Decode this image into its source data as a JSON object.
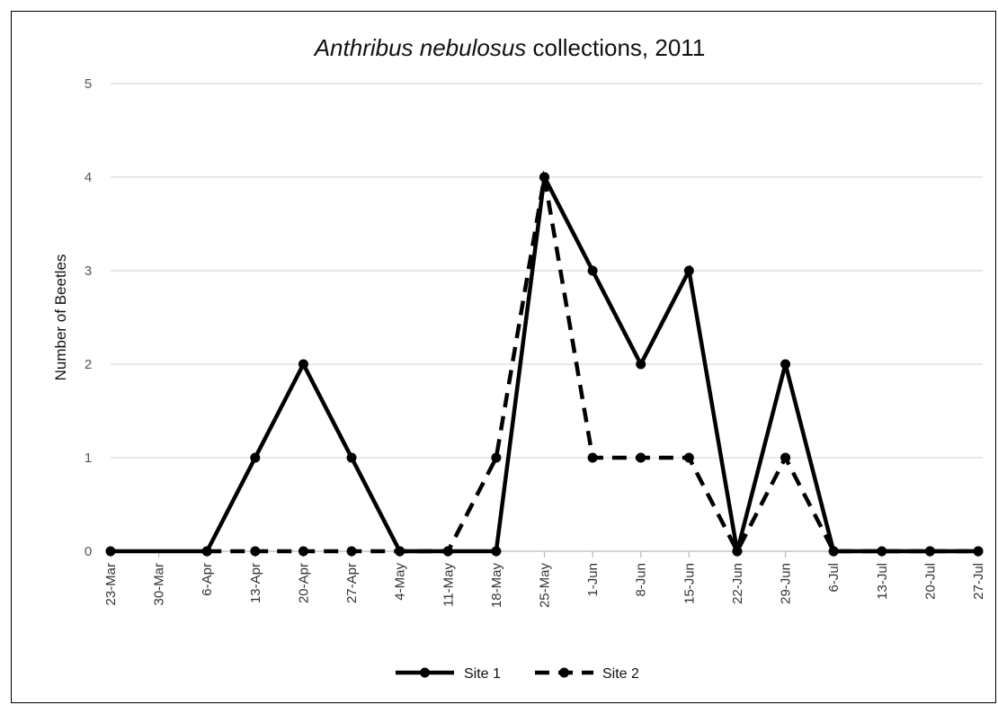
{
  "chart_data": {
    "type": "line",
    "title_italic": "Anthribus nebulosus",
    "title_rest": " collections, 2011",
    "xlabel": "",
    "ylabel": "Number of Beetles",
    "ylim": [
      0,
      5
    ],
    "yticks": [
      "0",
      "1",
      "2",
      "3",
      "4",
      "5"
    ],
    "categories": [
      "23-Mar",
      "30-Mar",
      "6-Apr",
      "13-Apr",
      "20-Apr",
      "27-Apr",
      "4-May",
      "11-May",
      "18-May",
      "25-May",
      "1-Jun",
      "8-Jun",
      "15-Jun",
      "22-Jun",
      "29-Jun",
      "6-Jul",
      "13-Jul",
      "20-Jul",
      "27-Jul"
    ],
    "grid": true,
    "legend_position": "bottom",
    "series": [
      {
        "name": "Site 1",
        "style": "solid",
        "color": "#000000",
        "values": [
          0,
          null,
          0,
          1,
          2,
          1,
          0,
          0,
          0,
          4,
          3,
          2,
          3,
          0,
          2,
          0,
          0,
          0,
          0
        ]
      },
      {
        "name": "Site 2",
        "style": "dashed",
        "color": "#000000",
        "values": [
          null,
          null,
          0,
          0,
          0,
          0,
          0,
          0,
          1,
          4,
          1,
          1,
          1,
          0,
          1,
          0,
          null,
          0,
          0
        ]
      }
    ]
  }
}
